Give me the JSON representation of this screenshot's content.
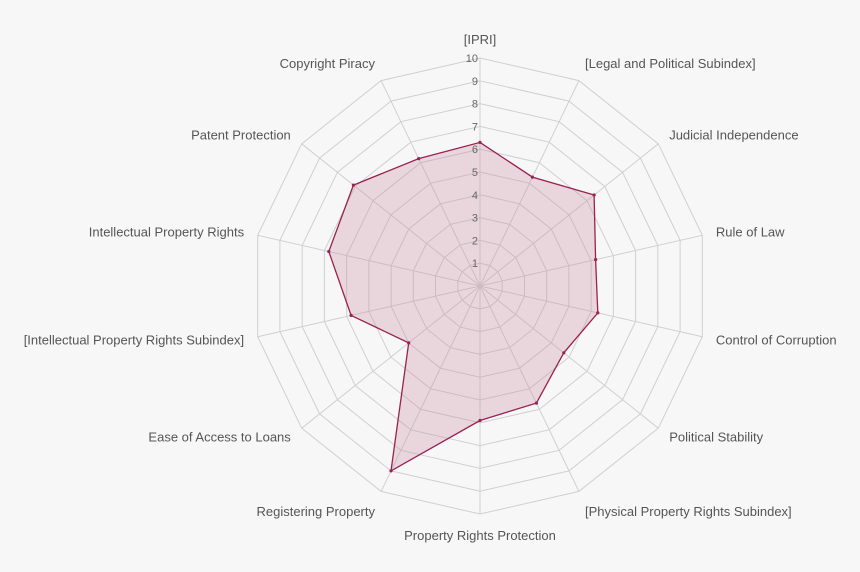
{
  "chart_data": {
    "type": "radar",
    "title": "",
    "categories": [
      "[IPRI]",
      "[Legal and Political Subindex]",
      "Judicial Independence",
      "Rule of Law",
      "Control of Corruption",
      "Political Stability",
      "[Physical Property Rights Subindex]",
      "Property Rights Protection",
      "Registering Property",
      "Ease of Access to Loans",
      "[Intellectual Property Rights Subindex]",
      "Intellectual Property Rights",
      "Patent Protection",
      "Copyright Piracy"
    ],
    "ticks": [
      "1",
      "2",
      "3",
      "4",
      "5",
      "6",
      "7",
      "8",
      "9",
      "10"
    ],
    "range": [
      0,
      10
    ],
    "series": [
      {
        "name": "",
        "values": [
          6.3,
          5.3,
          6.4,
          5.2,
          5.3,
          4.7,
          5.7,
          5.9,
          9.0,
          4.0,
          5.8,
          6.8,
          7.1,
          6.2
        ]
      }
    ],
    "colors": {
      "line": "#9a2150",
      "fill": "#c98aa0",
      "fill_opacity": 0.3
    }
  }
}
